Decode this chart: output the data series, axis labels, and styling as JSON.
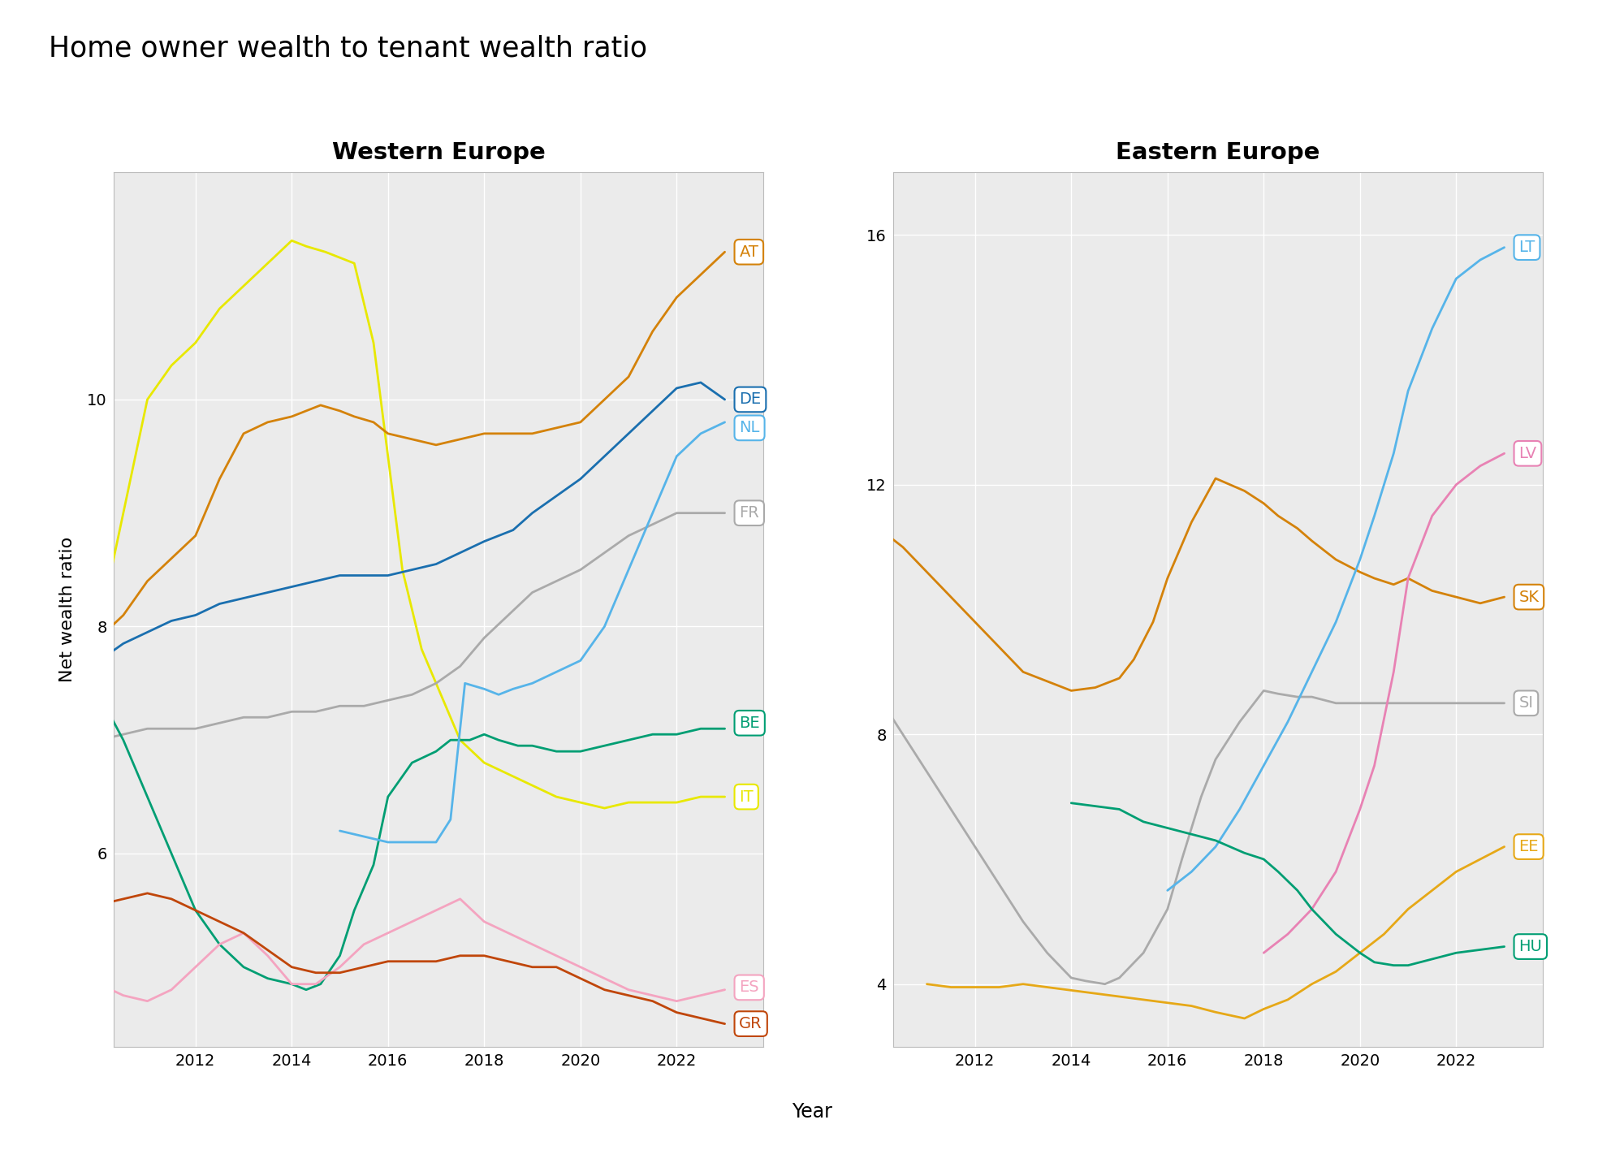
{
  "title": "Home owner wealth to tenant wealth ratio",
  "west_title": "Western Europe",
  "east_title": "Eastern Europe",
  "ylabel": "Net wealth ratio",
  "xlabel": "Year",
  "background_color": "#ffffff",
  "plot_bg_color": "#ebebeb",
  "grid_color": "#ffffff",
  "west": {
    "AT": {
      "color": "#D4820A",
      "years": [
        2010,
        2010.5,
        2011,
        2011.5,
        2012,
        2012.5,
        2013,
        2013.5,
        2014,
        2014.3,
        2014.6,
        2015,
        2015.3,
        2015.7,
        2016,
        2016.5,
        2017,
        2017.5,
        2018,
        2018.3,
        2018.7,
        2019,
        2019.5,
        2020,
        2020.5,
        2021,
        2021.5,
        2022,
        2022.5,
        2023
      ],
      "values": [
        7.9,
        8.1,
        8.4,
        8.6,
        8.8,
        9.3,
        9.7,
        9.8,
        9.85,
        9.9,
        9.95,
        9.9,
        9.85,
        9.8,
        9.7,
        9.65,
        9.6,
        9.65,
        9.7,
        9.7,
        9.7,
        9.7,
        9.75,
        9.8,
        10.0,
        10.2,
        10.6,
        10.9,
        11.1,
        11.3
      ]
    },
    "DE": {
      "color": "#1a6faf",
      "years": [
        2010,
        2010.5,
        2011,
        2011.5,
        2012,
        2012.5,
        2013,
        2013.5,
        2014,
        2014.5,
        2015,
        2015.5,
        2016,
        2016.5,
        2017,
        2017.5,
        2018,
        2018.3,
        2018.6,
        2019,
        2019.5,
        2020,
        2020.5,
        2021,
        2021.5,
        2022,
        2022.5,
        2023
      ],
      "values": [
        7.7,
        7.85,
        7.95,
        8.05,
        8.1,
        8.2,
        8.25,
        8.3,
        8.35,
        8.4,
        8.45,
        8.45,
        8.45,
        8.5,
        8.55,
        8.65,
        8.75,
        8.8,
        8.85,
        9.0,
        9.15,
        9.3,
        9.5,
        9.7,
        9.9,
        10.1,
        10.15,
        10.0
      ]
    },
    "NL": {
      "color": "#56b4e9",
      "years": [
        2015,
        2015.5,
        2016,
        2016.5,
        2017,
        2017.3,
        2017.6,
        2018,
        2018.3,
        2018.6,
        2019,
        2019.5,
        2020,
        2020.5,
        2021,
        2021.5,
        2022,
        2022.5,
        2023
      ],
      "values": [
        6.2,
        6.15,
        6.1,
        6.1,
        6.1,
        6.3,
        7.5,
        7.45,
        7.4,
        7.45,
        7.5,
        7.6,
        7.7,
        8.0,
        8.5,
        9.0,
        9.5,
        9.7,
        9.8
      ]
    },
    "FR": {
      "color": "#aaaaaa",
      "years": [
        2010,
        2010.5,
        2011,
        2011.5,
        2012,
        2012.5,
        2013,
        2013.5,
        2014,
        2014.5,
        2015,
        2015.5,
        2016,
        2016.5,
        2017,
        2017.5,
        2018,
        2018.5,
        2019,
        2019.5,
        2020,
        2020.5,
        2021,
        2021.5,
        2022,
        2022.5,
        2023
      ],
      "values": [
        7.0,
        7.05,
        7.1,
        7.1,
        7.1,
        7.15,
        7.2,
        7.2,
        7.25,
        7.25,
        7.3,
        7.3,
        7.35,
        7.4,
        7.5,
        7.65,
        7.9,
        8.1,
        8.3,
        8.4,
        8.5,
        8.65,
        8.8,
        8.9,
        9.0,
        9.0,
        9.0
      ]
    },
    "BE": {
      "color": "#009E73",
      "years": [
        2010,
        2010.5,
        2011,
        2011.5,
        2012,
        2012.5,
        2013,
        2013.5,
        2014,
        2014.3,
        2014.6,
        2015,
        2015.3,
        2015.7,
        2016,
        2016.5,
        2017,
        2017.3,
        2017.7,
        2018,
        2018.3,
        2018.7,
        2019,
        2019.5,
        2020,
        2020.5,
        2021,
        2021.5,
        2022,
        2022.5,
        2023
      ],
      "values": [
        7.4,
        7.0,
        6.5,
        6.0,
        5.5,
        5.2,
        5.0,
        4.9,
        4.85,
        4.8,
        4.85,
        5.1,
        5.5,
        5.9,
        6.5,
        6.8,
        6.9,
        7.0,
        7.0,
        7.05,
        7.0,
        6.95,
        6.95,
        6.9,
        6.9,
        6.95,
        7.0,
        7.05,
        7.05,
        7.1,
        7.1
      ]
    },
    "IT": {
      "color": "#e8e800",
      "years": [
        2010,
        2010.5,
        2011,
        2011.5,
        2012,
        2012.5,
        2013,
        2013.5,
        2014,
        2014.3,
        2014.7,
        2015,
        2015.3,
        2015.7,
        2016,
        2016.3,
        2016.7,
        2017,
        2017.5,
        2018,
        2018.5,
        2019,
        2019.5,
        2020,
        2020.5,
        2021,
        2021.5,
        2022,
        2022.5,
        2023
      ],
      "values": [
        8.0,
        9.0,
        10.0,
        10.3,
        10.5,
        10.8,
        11.0,
        11.2,
        11.4,
        11.35,
        11.3,
        11.25,
        11.2,
        10.5,
        9.5,
        8.5,
        7.8,
        7.5,
        7.0,
        6.8,
        6.7,
        6.6,
        6.5,
        6.45,
        6.4,
        6.45,
        6.45,
        6.45,
        6.5,
        6.5
      ]
    },
    "ES": {
      "color": "#f4a4c0",
      "years": [
        2010,
        2010.5,
        2011,
        2011.5,
        2012,
        2012.5,
        2013,
        2013.5,
        2014,
        2014.5,
        2015,
        2015.5,
        2016,
        2016.5,
        2017,
        2017.5,
        2018,
        2018.5,
        2019,
        2019.5,
        2020,
        2020.5,
        2021,
        2021.5,
        2022,
        2022.5,
        2023
      ],
      "values": [
        4.85,
        4.75,
        4.7,
        4.8,
        5.0,
        5.2,
        5.3,
        5.1,
        4.85,
        4.85,
        5.0,
        5.2,
        5.3,
        5.4,
        5.5,
        5.6,
        5.4,
        5.3,
        5.2,
        5.1,
        5.0,
        4.9,
        4.8,
        4.75,
        4.7,
        4.75,
        4.8
      ]
    },
    "GR": {
      "color": "#c0460a",
      "years": [
        2010,
        2010.5,
        2011,
        2011.5,
        2012,
        2012.5,
        2013,
        2013.5,
        2014,
        2014.5,
        2015,
        2015.5,
        2016,
        2016.5,
        2017,
        2017.5,
        2018,
        2018.5,
        2019,
        2019.5,
        2020,
        2020.5,
        2021,
        2021.5,
        2022,
        2022.5,
        2023
      ],
      "values": [
        5.55,
        5.6,
        5.65,
        5.6,
        5.5,
        5.4,
        5.3,
        5.15,
        5.0,
        4.95,
        4.95,
        5.0,
        5.05,
        5.05,
        5.05,
        5.1,
        5.1,
        5.05,
        5.0,
        5.0,
        4.9,
        4.8,
        4.75,
        4.7,
        4.6,
        4.55,
        4.5
      ]
    }
  },
  "east": {
    "LT": {
      "color": "#56b4e9",
      "years": [
        2016,
        2016.5,
        2017,
        2017.5,
        2018,
        2018.5,
        2019,
        2019.5,
        2020,
        2020.3,
        2020.7,
        2021,
        2021.5,
        2022,
        2022.5,
        2023
      ],
      "values": [
        5.5,
        5.8,
        6.2,
        6.8,
        7.5,
        8.2,
        9.0,
        9.8,
        10.8,
        11.5,
        12.5,
        13.5,
        14.5,
        15.3,
        15.6,
        15.8
      ]
    },
    "LV": {
      "color": "#e882b4",
      "years": [
        2018,
        2018.5,
        2019,
        2019.5,
        2020,
        2020.3,
        2020.7,
        2021,
        2021.5,
        2022,
        2022.5,
        2023
      ],
      "values": [
        4.5,
        4.8,
        5.2,
        5.8,
        6.8,
        7.5,
        9.0,
        10.5,
        11.5,
        12.0,
        12.3,
        12.5
      ]
    },
    "SK": {
      "color": "#D4820A",
      "years": [
        2010,
        2010.5,
        2011,
        2011.5,
        2012,
        2012.5,
        2013,
        2013.5,
        2014,
        2014.5,
        2015,
        2015.3,
        2015.7,
        2016,
        2016.5,
        2017,
        2017.3,
        2017.6,
        2018,
        2018.3,
        2018.7,
        2019,
        2019.5,
        2020,
        2020.3,
        2020.7,
        2021,
        2021.5,
        2022,
        2022.5,
        2023
      ],
      "values": [
        11.3,
        11.0,
        10.6,
        10.2,
        9.8,
        9.4,
        9.0,
        8.85,
        8.7,
        8.75,
        8.9,
        9.2,
        9.8,
        10.5,
        11.4,
        12.1,
        12.0,
        11.9,
        11.7,
        11.5,
        11.3,
        11.1,
        10.8,
        10.6,
        10.5,
        10.4,
        10.5,
        10.3,
        10.2,
        10.1,
        10.2
      ]
    },
    "SI": {
      "color": "#aaaaaa",
      "years": [
        2010,
        2010.5,
        2011,
        2011.5,
        2012,
        2012.5,
        2013,
        2013.5,
        2014,
        2014.3,
        2014.7,
        2015,
        2015.5,
        2016,
        2016.3,
        2016.7,
        2017,
        2017.5,
        2018,
        2018.3,
        2018.7,
        2019,
        2019.5,
        2020,
        2020.5,
        2021,
        2021.5,
        2022,
        2022.5,
        2023
      ],
      "values": [
        8.6,
        8.0,
        7.4,
        6.8,
        6.2,
        5.6,
        5.0,
        4.5,
        4.1,
        4.05,
        4.0,
        4.1,
        4.5,
        5.2,
        6.0,
        7.0,
        7.6,
        8.2,
        8.7,
        8.65,
        8.6,
        8.6,
        8.5,
        8.5,
        8.5,
        8.5,
        8.5,
        8.5,
        8.5,
        8.5
      ]
    },
    "EE": {
      "color": "#e6a817",
      "years": [
        2011,
        2011.5,
        2012,
        2012.5,
        2013,
        2013.5,
        2014,
        2014.5,
        2015,
        2015.5,
        2016,
        2016.5,
        2017,
        2017.3,
        2017.6,
        2018,
        2018.5,
        2019,
        2019.5,
        2020,
        2020.5,
        2021,
        2021.5,
        2022,
        2022.5,
        2023
      ],
      "values": [
        4.0,
        3.95,
        3.95,
        3.95,
        4.0,
        3.95,
        3.9,
        3.85,
        3.8,
        3.75,
        3.7,
        3.65,
        3.55,
        3.5,
        3.45,
        3.6,
        3.75,
        4.0,
        4.2,
        4.5,
        4.8,
        5.2,
        5.5,
        5.8,
        6.0,
        6.2
      ]
    },
    "HU": {
      "color": "#009E73",
      "years": [
        2014,
        2014.5,
        2015,
        2015.5,
        2016,
        2016.5,
        2017,
        2017.3,
        2017.6,
        2018,
        2018.3,
        2018.7,
        2019,
        2019.5,
        2020,
        2020.3,
        2020.7,
        2021,
        2021.5,
        2022,
        2022.5,
        2023
      ],
      "values": [
        6.9,
        6.85,
        6.8,
        6.6,
        6.5,
        6.4,
        6.3,
        6.2,
        6.1,
        6.0,
        5.8,
        5.5,
        5.2,
        4.8,
        4.5,
        4.35,
        4.3,
        4.3,
        4.4,
        4.5,
        4.55,
        4.6
      ]
    }
  },
  "west_ylim": [
    4.3,
    12.0
  ],
  "east_ylim": [
    3.0,
    17.0
  ],
  "west_yticks": [
    6,
    8,
    10
  ],
  "east_yticks": [
    4,
    8,
    12,
    16
  ],
  "west_xlim": [
    2010.3,
    2023.8
  ],
  "east_xlim": [
    2010.3,
    2023.8
  ],
  "xticks": [
    2012,
    2014,
    2016,
    2018,
    2020,
    2022
  ]
}
